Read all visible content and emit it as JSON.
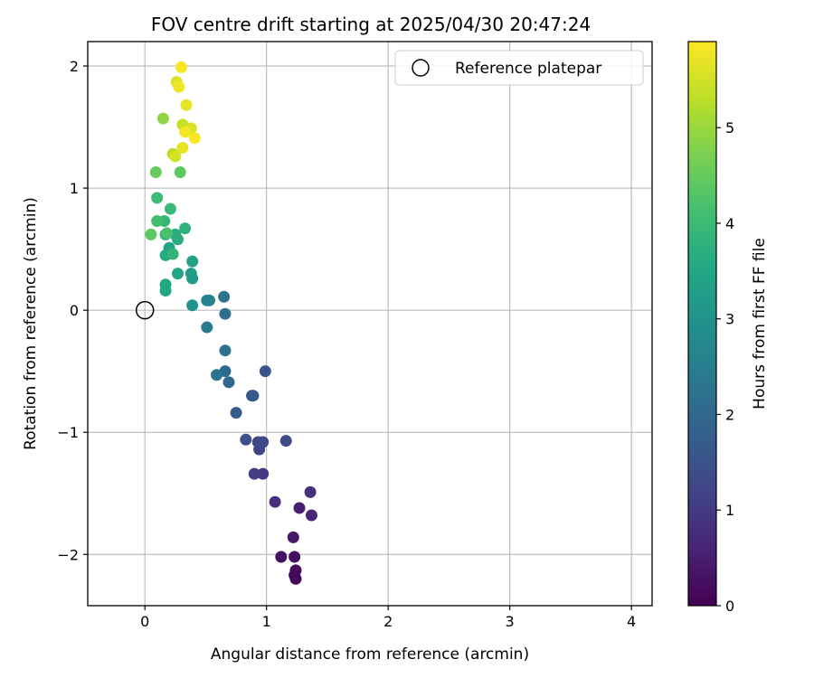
{
  "chart_data": {
    "type": "scatter",
    "title": "FOV centre drift starting at 2025/04/30 20:47:24",
    "xlabel": "Angular distance from reference (arcmin)",
    "ylabel": "Rotation from reference (arcmin)",
    "xlim": [
      -0.47,
      4.17
    ],
    "ylim": [
      -2.42,
      2.2
    ],
    "xticks": [
      0,
      1,
      2,
      3,
      4
    ],
    "xtick_labels": [
      "0",
      "1",
      "2",
      "3",
      "4"
    ],
    "yticks": [
      2,
      1,
      0,
      -1,
      -2
    ],
    "ytick_labels": [
      "2",
      "1",
      "0",
      "−1",
      "−2"
    ],
    "grid": true,
    "legend": {
      "position": "top-right",
      "entries": [
        {
          "label": "Reference platepar",
          "marker": "open-circle"
        }
      ]
    },
    "reference_point": {
      "x": 0,
      "y": 0
    },
    "colorbar": {
      "label": "Hours from first FF file",
      "colormap": "viridis",
      "range": [
        0,
        5.9
      ],
      "ticks": [
        0,
        1,
        2,
        3,
        4,
        5
      ],
      "tick_labels": [
        "0",
        "1",
        "2",
        "3",
        "4",
        "5"
      ]
    },
    "points": [
      {
        "x": 1.24,
        "y": -2.2,
        "t": 0.05
      },
      {
        "x": 1.23,
        "y": -2.17,
        "t": 0.1
      },
      {
        "x": 1.24,
        "y": -2.13,
        "t": 0.15
      },
      {
        "x": 1.23,
        "y": -2.02,
        "t": 0.2
      },
      {
        "x": 1.12,
        "y": -2.02,
        "t": 0.25
      },
      {
        "x": 1.22,
        "y": -1.86,
        "t": 0.4
      },
      {
        "x": 1.27,
        "y": -1.62,
        "t": 0.5
      },
      {
        "x": 1.37,
        "y": -1.68,
        "t": 0.6
      },
      {
        "x": 1.07,
        "y": -1.57,
        "t": 0.8
      },
      {
        "x": 1.36,
        "y": -1.49,
        "t": 0.8
      },
      {
        "x": 0.97,
        "y": -1.34,
        "t": 1.0
      },
      {
        "x": 0.9,
        "y": -1.34,
        "t": 1.05
      },
      {
        "x": 0.94,
        "y": -1.14,
        "t": 1.2
      },
      {
        "x": 0.97,
        "y": -1.08,
        "t": 1.25
      },
      {
        "x": 0.93,
        "y": -1.08,
        "t": 1.3
      },
      {
        "x": 1.16,
        "y": -1.07,
        "t": 1.35
      },
      {
        "x": 0.83,
        "y": -1.06,
        "t": 1.45
      },
      {
        "x": 0.89,
        "y": -0.7,
        "t": 1.5
      },
      {
        "x": 0.99,
        "y": -0.5,
        "t": 1.55
      },
      {
        "x": 0.75,
        "y": -0.84,
        "t": 1.7
      },
      {
        "x": 0.88,
        "y": -0.7,
        "t": 1.65
      },
      {
        "x": 0.69,
        "y": -0.59,
        "t": 1.95
      },
      {
        "x": 0.66,
        "y": -0.5,
        "t": 2.05
      },
      {
        "x": 0.59,
        "y": -0.53,
        "t": 2.3
      },
      {
        "x": 0.66,
        "y": -0.33,
        "t": 2.2
      },
      {
        "x": 0.51,
        "y": -0.14,
        "t": 2.45
      },
      {
        "x": 0.66,
        "y": -0.03,
        "t": 2.15
      },
      {
        "x": 0.65,
        "y": 0.11,
        "t": 2.25
      },
      {
        "x": 0.53,
        "y": 0.08,
        "t": 2.6
      },
      {
        "x": 0.51,
        "y": 0.08,
        "t": 2.65
      },
      {
        "x": 0.39,
        "y": 0.04,
        "t": 3.0
      },
      {
        "x": 0.39,
        "y": 0.26,
        "t": 3.2
      },
      {
        "x": 0.38,
        "y": 0.3,
        "t": 3.25
      },
      {
        "x": 0.39,
        "y": 0.4,
        "t": 3.35
      },
      {
        "x": 0.27,
        "y": 0.3,
        "t": 3.45
      },
      {
        "x": 0.17,
        "y": 0.16,
        "t": 3.5
      },
      {
        "x": 0.17,
        "y": 0.21,
        "t": 3.55
      },
      {
        "x": 0.2,
        "y": 0.51,
        "t": 3.4
      },
      {
        "x": 0.17,
        "y": 0.45,
        "t": 3.6
      },
      {
        "x": 0.27,
        "y": 0.58,
        "t": 3.65
      },
      {
        "x": 0.25,
        "y": 0.62,
        "t": 3.7
      },
      {
        "x": 0.17,
        "y": 0.62,
        "t": 3.75
      },
      {
        "x": 0.23,
        "y": 0.46,
        "t": 3.85
      },
      {
        "x": 0.33,
        "y": 0.67,
        "t": 3.8
      },
      {
        "x": 0.16,
        "y": 0.73,
        "t": 3.9
      },
      {
        "x": 0.21,
        "y": 0.83,
        "t": 3.95
      },
      {
        "x": 0.1,
        "y": 0.73,
        "t": 4.1
      },
      {
        "x": 0.1,
        "y": 0.92,
        "t": 4.0
      },
      {
        "x": 0.18,
        "y": 0.63,
        "t": 4.2
      },
      {
        "x": 0.05,
        "y": 0.62,
        "t": 4.4
      },
      {
        "x": 0.29,
        "y": 1.13,
        "t": 4.4
      },
      {
        "x": 0.09,
        "y": 1.13,
        "t": 4.5
      },
      {
        "x": 0.15,
        "y": 1.57,
        "t": 4.9
      },
      {
        "x": 0.23,
        "y": 1.28,
        "t": 5.3
      },
      {
        "x": 0.25,
        "y": 1.26,
        "t": 5.5
      },
      {
        "x": 0.31,
        "y": 1.33,
        "t": 5.7
      },
      {
        "x": 0.31,
        "y": 1.52,
        "t": 5.4
      },
      {
        "x": 0.38,
        "y": 1.49,
        "t": 5.6
      },
      {
        "x": 0.33,
        "y": 1.46,
        "t": 5.8
      },
      {
        "x": 0.41,
        "y": 1.41,
        "t": 5.85
      },
      {
        "x": 0.34,
        "y": 1.68,
        "t": 5.7
      },
      {
        "x": 0.26,
        "y": 1.87,
        "t": 5.6
      },
      {
        "x": 0.28,
        "y": 1.83,
        "t": 5.75
      },
      {
        "x": 0.3,
        "y": 1.99,
        "t": 5.85
      }
    ]
  }
}
